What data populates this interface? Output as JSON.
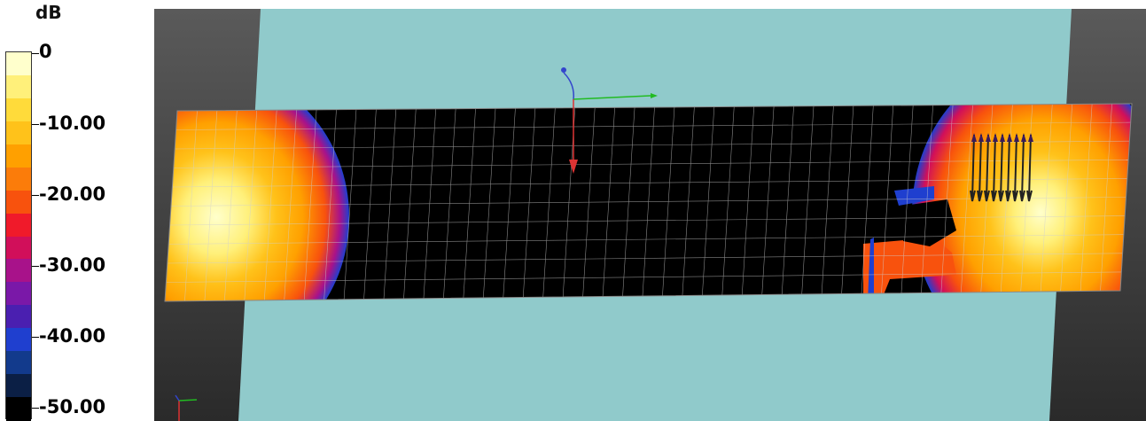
{
  "legend": {
    "unit": "dB",
    "tick_labels": [
      "0",
      "-10.00",
      "-20.00",
      "-30.00",
      "-40.00",
      "-50.00"
    ],
    "range": [
      -50,
      0
    ],
    "colors": [
      "#000000",
      "#0b1f45",
      "#123a8c",
      "#1f3fcf",
      "#4a1fb0",
      "#7a18a8",
      "#a8128a",
      "#d10f5a",
      "#f01a2a",
      "#f8520d",
      "#fb7c0a",
      "#ffa000",
      "#ffc21a",
      "#ffdb3a",
      "#fff07a",
      "#ffffcc"
    ]
  },
  "scene": {
    "background_colors": {
      "dark": "#3c3c3c",
      "panel": "#90cacb",
      "mesh": "#000000",
      "grid": "#cfcfcf"
    },
    "axis_colors": {
      "x": "#22bb22",
      "y": "#dd3333",
      "z": "#3344cc"
    }
  }
}
